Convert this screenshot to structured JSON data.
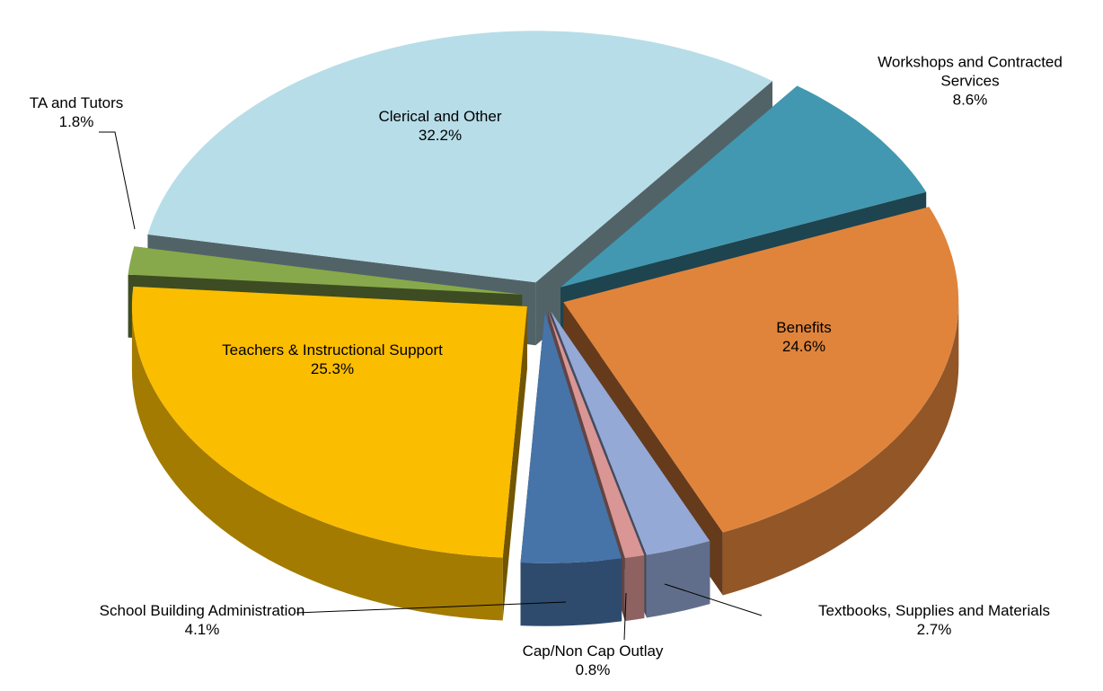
{
  "chart_data": {
    "type": "pie3d",
    "categories": [
      "Clerical and Other",
      "Workshops and Contracted Services",
      "Benefits",
      "Textbooks, Supplies and Materials",
      "Cap/Non Cap Outlay",
      "School Building Administration",
      "Teachers & Instructional Support",
      "TA and Tutors"
    ],
    "values": [
      32.2,
      8.6,
      24.6,
      2.7,
      0.8,
      4.1,
      25.3,
      1.8
    ],
    "value_labels": [
      "32.2%",
      "8.6%",
      "24.6%",
      "2.7%",
      "0.8%",
      "4.1%",
      "25.3%",
      "1.8%"
    ],
    "colors": [
      "#b7dde8",
      "#4298b0",
      "#e0843c",
      "#95a9d6",
      "#d99694",
      "#4674a8",
      "#fbbd00",
      "#87a94c"
    ]
  }
}
